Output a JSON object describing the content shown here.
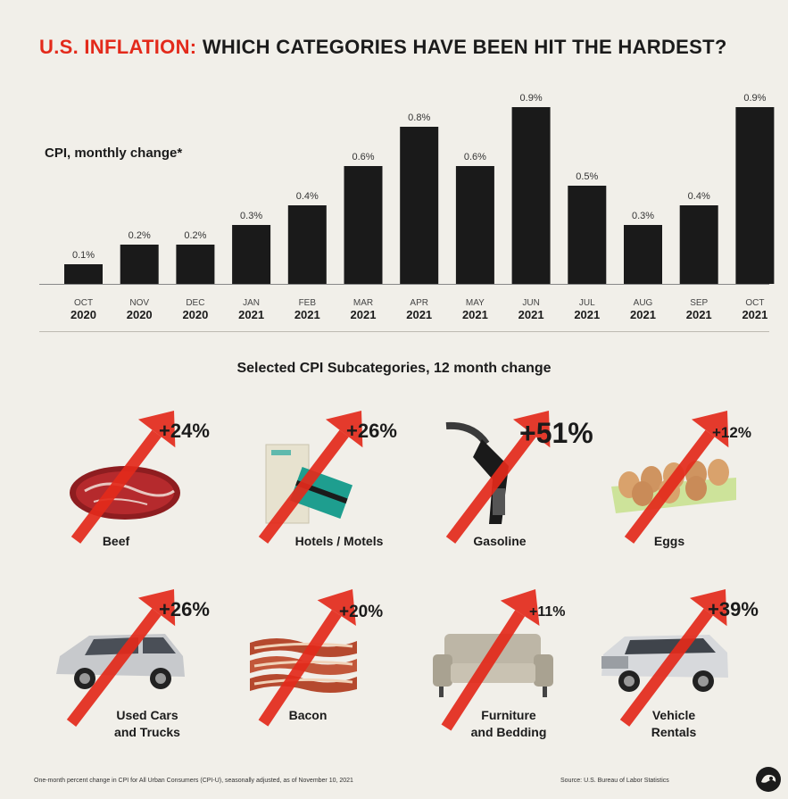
{
  "header": {
    "title_red": "U.S. INFLATION:",
    "title_rest": " WHICH CATEGORIES HAVE BEEN HIT THE HARDEST?",
    "ylabel": "CPI, monthly change*"
  },
  "chart_data": {
    "type": "bar",
    "categories": [
      {
        "month": "OCT",
        "year": "2020"
      },
      {
        "month": "NOV",
        "year": "2020"
      },
      {
        "month": "DEC",
        "year": "2020"
      },
      {
        "month": "JAN",
        "year": "2021"
      },
      {
        "month": "FEB",
        "year": "2021"
      },
      {
        "month": "MAR",
        "year": "2021"
      },
      {
        "month": "APR",
        "year": "2021"
      },
      {
        "month": "MAY",
        "year": "2021"
      },
      {
        "month": "JUN",
        "year": "2021"
      },
      {
        "month": "JUL",
        "year": "2021"
      },
      {
        "month": "AUG",
        "year": "2021"
      },
      {
        "month": "SEP",
        "year": "2021"
      },
      {
        "month": "OCT",
        "year": "2021"
      }
    ],
    "values": [
      0.1,
      0.2,
      0.2,
      0.3,
      0.4,
      0.6,
      0.8,
      0.6,
      0.9,
      0.5,
      0.3,
      0.4,
      0.9
    ],
    "value_labels": [
      "0.1%",
      "0.2%",
      "0.2%",
      "0.3%",
      "0.4%",
      "0.6%",
      "0.8%",
      "0.6%",
      "0.9%",
      "0.5%",
      "0.3%",
      "0.4%",
      "0.9%"
    ],
    "ylabel": "CPI, monthly change*",
    "ylim": [
      0,
      0.9
    ],
    "grid": false,
    "bar_color": "#1a1a1a"
  },
  "subcategories": {
    "title": "Selected CPI Subcategories, 12 month change",
    "items": [
      {
        "label": "Beef",
        "change": "+24%",
        "icon": "beef-icon"
      },
      {
        "label": "Hotels / Motels",
        "change": "+26%",
        "icon": "hotel-keycard-icon"
      },
      {
        "label": "Gasoline",
        "change": "+51%",
        "icon": "gas-nozzle-icon"
      },
      {
        "label": "Eggs",
        "change": "+12%",
        "icon": "eggs-icon"
      },
      {
        "label": "Used Cars\nand Trucks",
        "change": "+26%",
        "icon": "minivan-icon"
      },
      {
        "label": "Bacon",
        "change": "+20%",
        "icon": "bacon-icon"
      },
      {
        "label": "Furniture\nand Bedding",
        "change": "+11%",
        "icon": "sofa-icon"
      },
      {
        "label": "Vehicle\nRentals",
        "change": "+39%",
        "icon": "suv-icon"
      }
    ]
  },
  "footer": {
    "note": "One-month percent change in CPI for All Urban Consumers (CPI-U), seasonally adjusted, as of November 10, 2021",
    "source": "Source: U.S. Bureau of Labor Statistics"
  },
  "colors": {
    "accent_red": "#e32a1b",
    "background": "#f1efe9",
    "bar": "#1a1a1a"
  }
}
